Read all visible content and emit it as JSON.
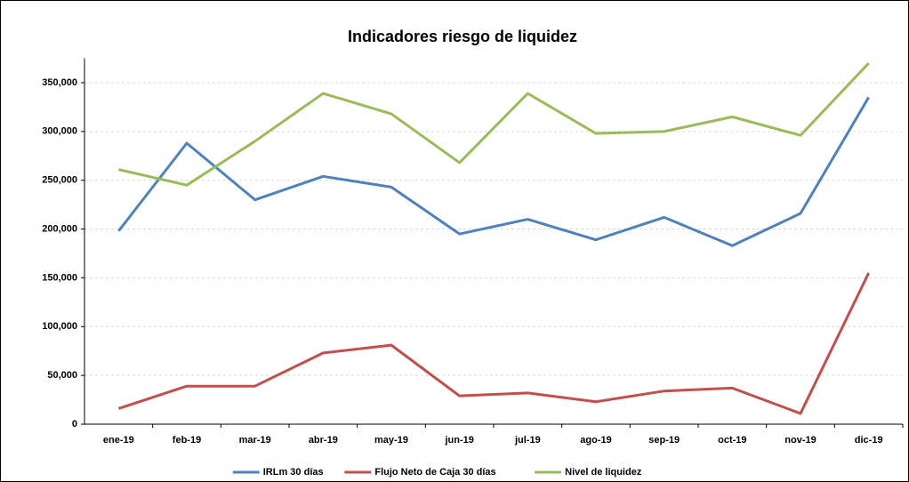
{
  "chart_data": {
    "type": "line",
    "title": "Indicadores riesgo de liquidez",
    "categories": [
      "ene-19",
      "feb-19",
      "mar-19",
      "abr-19",
      "may-19",
      "jun-19",
      "jul-19",
      "ago-19",
      "sep-19",
      "oct-19",
      "nov-19",
      "dic-19"
    ],
    "series": [
      {
        "name": "IRLm 30 días",
        "color": "#4f81bd",
        "values": [
          198000,
          288000,
          230000,
          254000,
          243000,
          195000,
          210000,
          189000,
          212000,
          183000,
          216000,
          335000
        ]
      },
      {
        "name": "Flujo Neto de Caja 30 días",
        "color": "#c0504d",
        "values": [
          16000,
          39000,
          39000,
          73000,
          81000,
          29000,
          32000,
          23000,
          34000,
          37000,
          11000,
          155000
        ]
      },
      {
        "name": "Nivel de liquidez",
        "color": "#9bbb59",
        "values": [
          261000,
          245000,
          290000,
          339000,
          318000,
          268000,
          339000,
          298000,
          300000,
          315000,
          296000,
          370000
        ]
      }
    ],
    "ylim": [
      0,
      375000
    ],
    "yticks": [
      0,
      {
        "value": 50000,
        "label": "50,000"
      },
      {
        "value": 100000,
        "label": "100,000"
      },
      {
        "value": 150000,
        "label": "150,000"
      },
      {
        "value": 200000,
        "label": "200,000"
      },
      {
        "value": 250000,
        "label": "250,000"
      },
      {
        "value": 300000,
        "label": "300,000"
      },
      {
        "value": 350000,
        "label": "350,000"
      }
    ],
    "grid": true,
    "legend": "bottom"
  }
}
